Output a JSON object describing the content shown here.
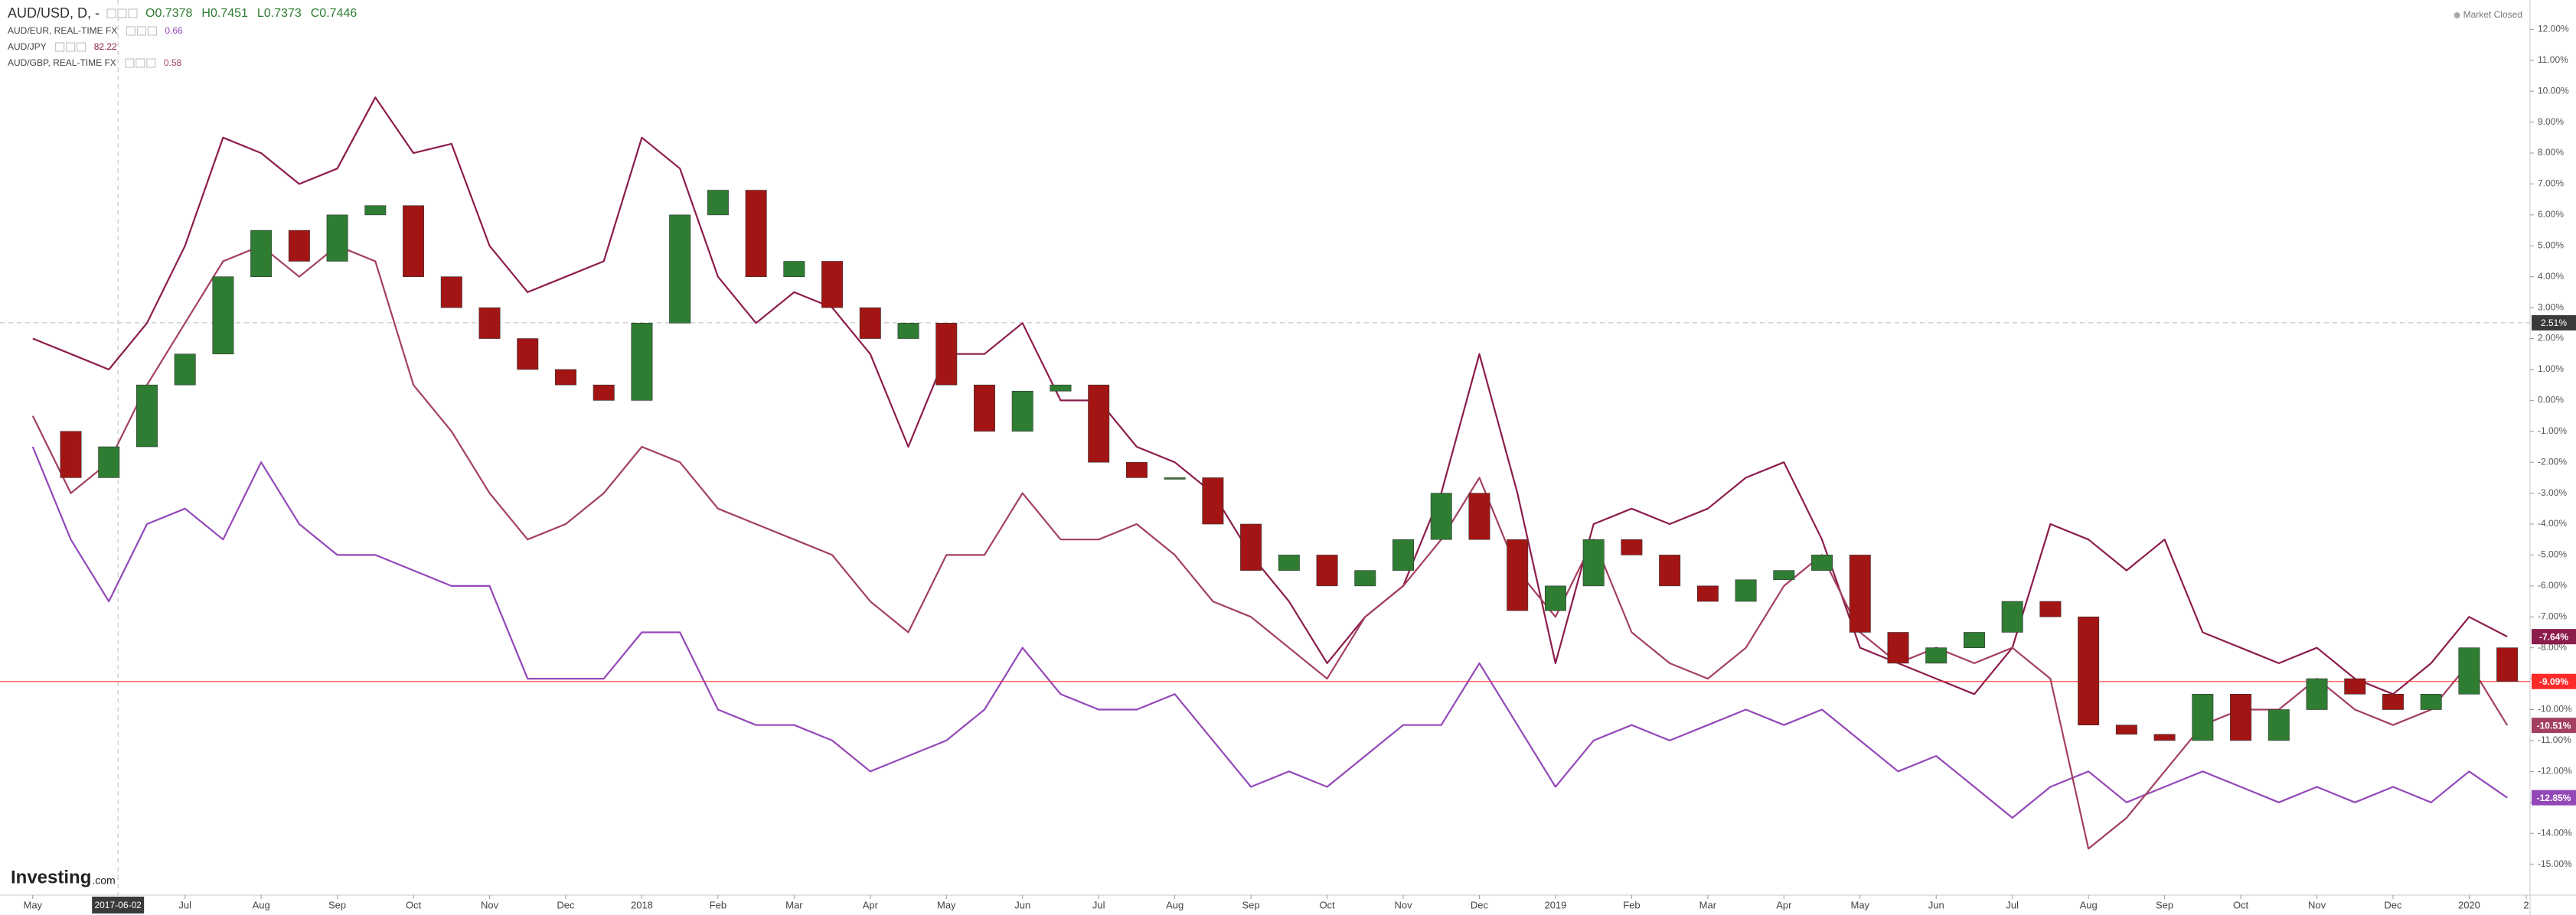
{
  "chart_data": {
    "type": "candlestick",
    "title": "AUD/USD, D, -",
    "ohlc": [
      "O0.7378",
      "H0.7451",
      "L0.7373",
      "C0.7446"
    ],
    "status": "Market Closed",
    "logo": {
      "brand": "Investing",
      "suffix": ".com"
    },
    "x": [
      0,
      0.5,
      1,
      1.5,
      2,
      2.5,
      3,
      3.5,
      4,
      4.5,
      5,
      5.5,
      6,
      6.5,
      7,
      7.5,
      8,
      8.5,
      9,
      9.5,
      10,
      10.5,
      11,
      11.5,
      12,
      12.5,
      13,
      13.5,
      14,
      14.5,
      15,
      15.5,
      16,
      16.5,
      17,
      17.5,
      18,
      18.5,
      19,
      19.5,
      20,
      20.5,
      21,
      21.5,
      22,
      22.5,
      23,
      23.5,
      24,
      24.5,
      25,
      25.5,
      26,
      26.5,
      27,
      27.5,
      28,
      28.5,
      29,
      29.5,
      30,
      30.5,
      31,
      31.5,
      32,
      32.5
    ],
    "main": {
      "up_color": "#2e7d32",
      "down_color": "#a31515",
      "end_label": "-9.09%",
      "label_color": "#ff2a2a",
      "values": [
        -1,
        -2.5,
        -1.5,
        0.5,
        1.5,
        4,
        5.5,
        4.5,
        6,
        6.3,
        4,
        3,
        2,
        1,
        0.5,
        0,
        2.5,
        6,
        6.8,
        4,
        4.5,
        3,
        2,
        2.5,
        0.5,
        -1,
        0.3,
        0.5,
        -2,
        -2.5,
        -2.5,
        -4,
        -5.5,
        -5,
        -6,
        -5.5,
        -4.5,
        -3,
        -4.5,
        -6.8,
        -6,
        -4.5,
        -5,
        -6,
        -6.5,
        -5.8,
        -5.5,
        -5,
        -7.5,
        -8.5,
        -8,
        -7.5,
        -6.5,
        -7,
        -10.5,
        -10.8,
        -11,
        -9.5,
        -11,
        -10,
        -9,
        -9.5,
        -10,
        -9.5,
        -8,
        -9.09
      ]
    },
    "series": [
      {
        "name": "AUD/EUR, REAL-TIME FX",
        "legend_value": "0.66",
        "color": "#9448b8",
        "end_label": "-12.85%",
        "values": [
          -1.5,
          -4.5,
          -6.5,
          -4,
          -3.5,
          -4.5,
          -2,
          -4,
          -5,
          -5,
          -5.5,
          -6,
          -6,
          -9,
          -9,
          -9,
          -7.5,
          -7.5,
          -10,
          -10.5,
          -10.5,
          -11,
          -12,
          -11.5,
          -11,
          -10,
          -8,
          -9.5,
          -10,
          -10,
          -9.5,
          -11,
          -12.5,
          -12,
          -12.5,
          -11.5,
          -10.5,
          -10.5,
          -8.5,
          -10.5,
          -12.5,
          -11,
          -10.5,
          -11,
          -10.5,
          -10,
          -10.5,
          -10,
          -11,
          -12,
          -11.5,
          -12.5,
          -13.5,
          -12.5,
          -12,
          -13,
          -12.5,
          -12,
          -12.5,
          -13,
          -12.5,
          -13,
          -12.5,
          -13,
          -12,
          -12.85
        ]
      },
      {
        "name": "AUD/JPY",
        "legend_value": "82.22",
        "color": "#8c1c4c",
        "end_label": "-7.64%",
        "values": [
          2,
          1.5,
          1,
          2.5,
          5,
          8.5,
          8,
          7,
          7.5,
          9.8,
          8,
          8.3,
          5,
          3.5,
          4,
          4.5,
          8.5,
          7.5,
          4,
          2.5,
          3.5,
          3,
          1.5,
          -1.5,
          1.5,
          1.5,
          2.5,
          0,
          0,
          -1.5,
          -2,
          -3,
          -5,
          -6.5,
          -8.5,
          -7,
          -6,
          -3,
          1.5,
          -3,
          -8.5,
          -4,
          -3.5,
          -4,
          -3.5,
          -2.5,
          -2,
          -4.5,
          -8,
          -8.5,
          -9,
          -9.5,
          -8,
          -4,
          -4.5,
          -5.5,
          -4.5,
          -7.5,
          -8,
          -8.5,
          -8,
          -9,
          -9.5,
          -8.5,
          -7,
          -7.64
        ]
      },
      {
        "name": "AUD/GBP, REAL-TIME FX",
        "legend_value": "0.58",
        "color": "#a3405f",
        "end_label": "-10.51%",
        "values": [
          -0.5,
          -3,
          -2,
          0.5,
          2.5,
          4.5,
          5,
          4,
          5,
          4.5,
          0.5,
          -1,
          -3,
          -4.5,
          -4,
          -3,
          -1.5,
          -2,
          -3.5,
          -4,
          -4.5,
          -5,
          -6.5,
          -7.5,
          -5,
          -5,
          -3,
          -4.5,
          -4.5,
          -4,
          -5,
          -6.5,
          -7,
          -8,
          -9,
          -7,
          -6,
          -4.5,
          -2.5,
          -5.5,
          -7,
          -4.5,
          -7.5,
          -8.5,
          -9,
          -8,
          -6,
          -5,
          -7.5,
          -8.5,
          -8,
          -8.5,
          -8,
          -9,
          -14.5,
          -13.5,
          -12,
          -10.5,
          -10,
          -10,
          -9,
          -10,
          -10.5,
          -10,
          -8.5,
          -10.51
        ]
      }
    ],
    "crosshair": {
      "x": {
        "value": 1.12,
        "label": "2017-06-02"
      },
      "y": {
        "value": 2.51,
        "label": "2.51%"
      }
    },
    "xlim": [
      -0.43,
      32.8
    ],
    "ylim": [
      -16,
      12.95
    ],
    "xticks": [
      {
        "value": 0,
        "label": "May"
      },
      {
        "value": 2,
        "label": "Jul"
      },
      {
        "value": 3,
        "label": "Aug"
      },
      {
        "value": 4,
        "label": "Sep"
      },
      {
        "value": 5,
        "label": "Oct"
      },
      {
        "value": 6,
        "label": "Nov"
      },
      {
        "value": 7,
        "label": "Dec"
      },
      {
        "value": 8,
        "label": "2018"
      },
      {
        "value": 9,
        "label": "Feb"
      },
      {
        "value": 10,
        "label": "Mar"
      },
      {
        "value": 11,
        "label": "Apr"
      },
      {
        "value": 12,
        "label": "May"
      },
      {
        "value": 13,
        "label": "Jun"
      },
      {
        "value": 14,
        "label": "Jul"
      },
      {
        "value": 15,
        "label": "Aug"
      },
      {
        "value": 16,
        "label": "Sep"
      },
      {
        "value": 17,
        "label": "Oct"
      },
      {
        "value": 18,
        "label": "Nov"
      },
      {
        "value": 19,
        "label": "Dec"
      },
      {
        "value": 20,
        "label": "2019"
      },
      {
        "value": 21,
        "label": "Feb"
      },
      {
        "value": 22,
        "label": "Mar"
      },
      {
        "value": 23,
        "label": "Apr"
      },
      {
        "value": 24,
        "label": "May"
      },
      {
        "value": 25,
        "label": "Jun"
      },
      {
        "value": 26,
        "label": "Jul"
      },
      {
        "value": 27,
        "label": "Aug"
      },
      {
        "value": 28,
        "label": "Sep"
      },
      {
        "value": 29,
        "label": "Oct"
      },
      {
        "value": 30,
        "label": "Nov"
      },
      {
        "value": 31,
        "label": "Dec"
      },
      {
        "value": 32,
        "label": "2020"
      },
      {
        "value": 32.75,
        "label": "2"
      }
    ],
    "yticks": [
      {
        "value": 12,
        "label": "12.00%"
      },
      {
        "value": 11,
        "label": "11.00%"
      },
      {
        "value": 10,
        "label": "10.00%"
      },
      {
        "value": 9,
        "label": "9.00%"
      },
      {
        "value": 8,
        "label": "8.00%"
      },
      {
        "value": 7,
        "label": "7.00%"
      },
      {
        "value": 6,
        "label": "6.00%"
      },
      {
        "value": 5,
        "label": "5.00%"
      },
      {
        "value": 4,
        "label": "4.00%"
      },
      {
        "value": 3,
        "label": "3.00%"
      },
      {
        "value": 2,
        "label": "2.00%"
      },
      {
        "value": 1,
        "label": "1.00%"
      },
      {
        "value": 0,
        "label": "0.00%"
      },
      {
        "value": -1,
        "label": "-1.00%"
      },
      {
        "value": -2,
        "label": "-2.00%"
      },
      {
        "value": -3,
        "label": "-3.00%"
      },
      {
        "value": -4,
        "label": "-4.00%"
      },
      {
        "value": -5,
        "label": "-5.00%"
      },
      {
        "value": -6,
        "label": "-6.00%"
      },
      {
        "value": -7,
        "label": "-7.00%"
      },
      {
        "value": -8,
        "label": "-8.00%"
      },
      {
        "value": -9,
        "label": "-9.00%"
      },
      {
        "value": -10,
        "label": "-10.00%"
      },
      {
        "value": -11,
        "label": "-11.00%"
      },
      {
        "value": -12,
        "label": "-12.00%"
      },
      {
        "value": -13,
        "label": "-13.00%"
      },
      {
        "value": -14,
        "label": "-14.00%"
      },
      {
        "value": -15,
        "label": "-15.00%"
      }
    ]
  }
}
